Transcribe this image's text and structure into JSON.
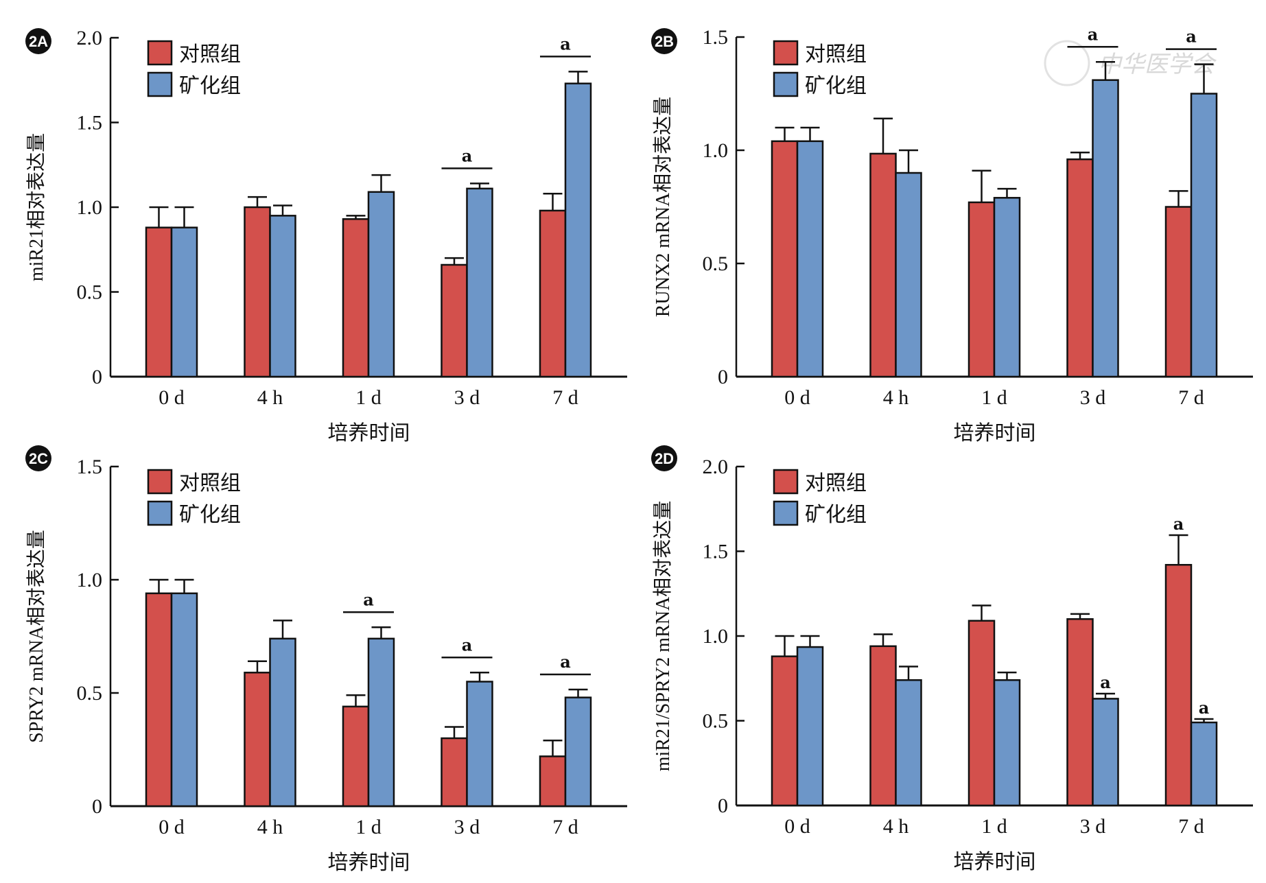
{
  "figure": {
    "legend": [
      {
        "name": "对照组",
        "color": "#d3504c"
      },
      {
        "name": "矿化组",
        "color": "#6d96c8"
      }
    ],
    "watermark_text": "中华医学会",
    "colors": {
      "control": "#d3504c",
      "mineralized": "#6d96c8",
      "outline": "#111111"
    }
  },
  "chart_data": [
    {
      "panel": "2A",
      "type": "bar",
      "title": "",
      "xlabel": "培养时间",
      "ylabel": "miR21相对表达量",
      "categories": [
        "0 d",
        "4 h",
        "1 d",
        "3 d",
        "7 d"
      ],
      "ylim": [
        0,
        2.0
      ],
      "yticks": [
        "0",
        "0.5",
        "1.0",
        "1.5",
        "2.0"
      ],
      "ytick_values": [
        0,
        0.5,
        1.0,
        1.5,
        2.0
      ],
      "legend_position": "top-left",
      "grid": false,
      "series": [
        {
          "name": "对照组",
          "values": [
            0.88,
            1.0,
            0.93,
            0.66,
            0.98
          ],
          "error": [
            0.12,
            0.06,
            0.02,
            0.04,
            0.1
          ]
        },
        {
          "name": "矿化组",
          "values": [
            0.88,
            0.95,
            1.09,
            1.11,
            1.73
          ],
          "error": [
            0.12,
            0.06,
            0.1,
            0.03,
            0.07
          ]
        }
      ],
      "annotations": [
        {
          "text": "a",
          "category": "3 d",
          "type": "bracket"
        },
        {
          "text": "a",
          "category": "7 d",
          "type": "bracket"
        }
      ]
    },
    {
      "panel": "2B",
      "type": "bar",
      "title": "",
      "xlabel": "培养时间",
      "ylabel": "RUNX2 mRNA相对表达量",
      "categories": [
        "0 d",
        "4 h",
        "1 d",
        "3 d",
        "7 d"
      ],
      "ylim": [
        0,
        1.5
      ],
      "yticks": [
        "0",
        "0.5",
        "1.0",
        "1.5"
      ],
      "ytick_values": [
        0,
        0.5,
        1.0,
        1.5
      ],
      "legend_position": "top-left",
      "grid": false,
      "series": [
        {
          "name": "对照组",
          "values": [
            1.04,
            0.985,
            0.77,
            0.96,
            0.75
          ],
          "error": [
            0.06,
            0.155,
            0.14,
            0.03,
            0.07
          ]
        },
        {
          "name": "矿化组",
          "values": [
            1.04,
            0.9,
            0.79,
            1.31,
            1.25
          ],
          "error": [
            0.06,
            0.1,
            0.04,
            0.08,
            0.13
          ]
        }
      ],
      "annotations": [
        {
          "text": "a",
          "category": "3 d",
          "type": "bracket"
        },
        {
          "text": "a",
          "category": "7 d",
          "type": "bracket"
        }
      ]
    },
    {
      "panel": "2C",
      "type": "bar",
      "title": "",
      "xlabel": "培养时间",
      "ylabel": "SPRY2 mRNA相对表达量",
      "categories": [
        "0 d",
        "4 h",
        "1 d",
        "3 d",
        "7 d"
      ],
      "ylim": [
        0,
        1.5
      ],
      "yticks": [
        "0",
        "0.5",
        "1.0",
        "1.5"
      ],
      "ytick_values": [
        0,
        0.5,
        1.0,
        1.5
      ],
      "legend_position": "top-left",
      "grid": false,
      "series": [
        {
          "name": "对照组",
          "values": [
            0.94,
            0.59,
            0.44,
            0.3,
            0.22
          ],
          "error": [
            0.06,
            0.05,
            0.05,
            0.05,
            0.07
          ]
        },
        {
          "name": "矿化组",
          "values": [
            0.94,
            0.74,
            0.74,
            0.55,
            0.48
          ],
          "error": [
            0.06,
            0.08,
            0.05,
            0.04,
            0.035
          ]
        }
      ],
      "annotations": [
        {
          "text": "a",
          "category": "1 d",
          "type": "bracket"
        },
        {
          "text": "a",
          "category": "3 d",
          "type": "bracket"
        },
        {
          "text": "a",
          "category": "7 d",
          "type": "bracket"
        }
      ]
    },
    {
      "panel": "2D",
      "type": "bar",
      "title": "",
      "xlabel": "培养时间",
      "ylabel": "miR21/SPRY2 mRNA相对表达量",
      "categories": [
        "0 d",
        "4 h",
        "1 d",
        "3 d",
        "7 d"
      ],
      "ylim": [
        0,
        2.0
      ],
      "yticks": [
        "0",
        "0.5",
        "1.0",
        "1.5",
        "2.0"
      ],
      "ytick_values": [
        0,
        0.5,
        1.0,
        1.5,
        2.0
      ],
      "legend_position": "top-left",
      "grid": false,
      "series": [
        {
          "name": "对照组",
          "values": [
            0.88,
            0.94,
            1.09,
            1.1,
            1.42
          ],
          "error": [
            0.12,
            0.07,
            0.09,
            0.03,
            0.175
          ]
        },
        {
          "name": "矿化组",
          "values": [
            0.935,
            0.74,
            0.74,
            0.63,
            0.49
          ],
          "error": [
            0.065,
            0.08,
            0.045,
            0.03,
            0.02
          ]
        }
      ],
      "annotations": [
        {
          "text": "a",
          "category": "3 d",
          "series": "矿化组",
          "type": "bar-top"
        },
        {
          "text": "a",
          "category": "7 d",
          "series": "对照组",
          "type": "bar-top"
        },
        {
          "text": "a",
          "category": "7 d",
          "series": "矿化组",
          "type": "bar-top"
        }
      ]
    }
  ]
}
